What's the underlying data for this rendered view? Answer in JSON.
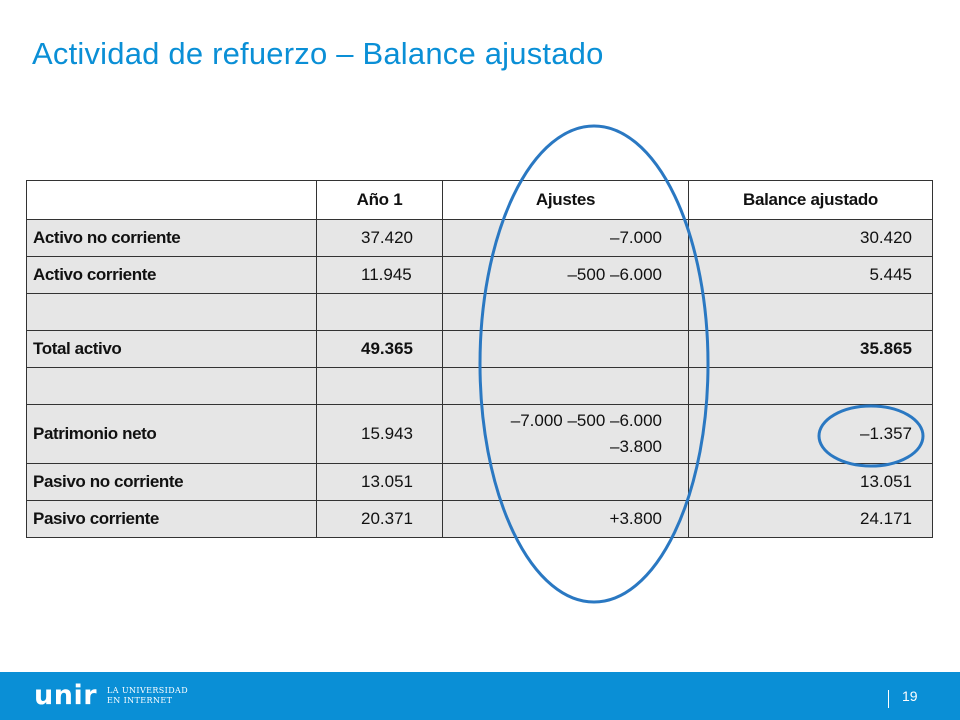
{
  "slide": {
    "title": "Actividad de refuerzo – Balance ajustado"
  },
  "table": {
    "headers": [
      "",
      "Año 1",
      "Ajustes",
      "Balance ajustado"
    ],
    "rows": {
      "activo_no_corriente": {
        "label": "Activo no corriente",
        "year1": "37.420",
        "adjustments": [
          "–7.000"
        ],
        "adjusted": "30.420"
      },
      "activo_corriente": {
        "label": "Activo corriente",
        "year1": "11.945",
        "adjustments": [
          "–500 –6.000"
        ],
        "adjusted": "5.445"
      },
      "total_activo": {
        "label": "Total activo",
        "year1": "49.365",
        "adjustments": [
          ""
        ],
        "adjusted": "35.865"
      },
      "patrimonio_neto": {
        "label": "Patrimonio neto",
        "year1": "15.943",
        "adjustments": [
          "–7.000 –500 –6.000",
          "–3.800"
        ],
        "adjusted": "–1.357"
      },
      "pasivo_no_corriente": {
        "label": "Pasivo no corriente",
        "year1": "13.051",
        "adjustments": [
          ""
        ],
        "adjusted": "13.051"
      },
      "pasivo_corriente": {
        "label": "Pasivo corriente",
        "year1": "20.371",
        "adjustments": [
          "+3.800"
        ],
        "adjusted": "24.171"
      }
    }
  },
  "annotations": {
    "stroke_color": "#2a78c2",
    "highlight": [
      "Ajustes",
      "–1.357"
    ]
  },
  "footer": {
    "background_color": "#0a8fd6",
    "logo_wordmark": "unir",
    "logo_tagline_line1": "LA UNIVERSIDAD",
    "logo_tagline_line2": "EN INTERNET",
    "page_number": "19"
  }
}
